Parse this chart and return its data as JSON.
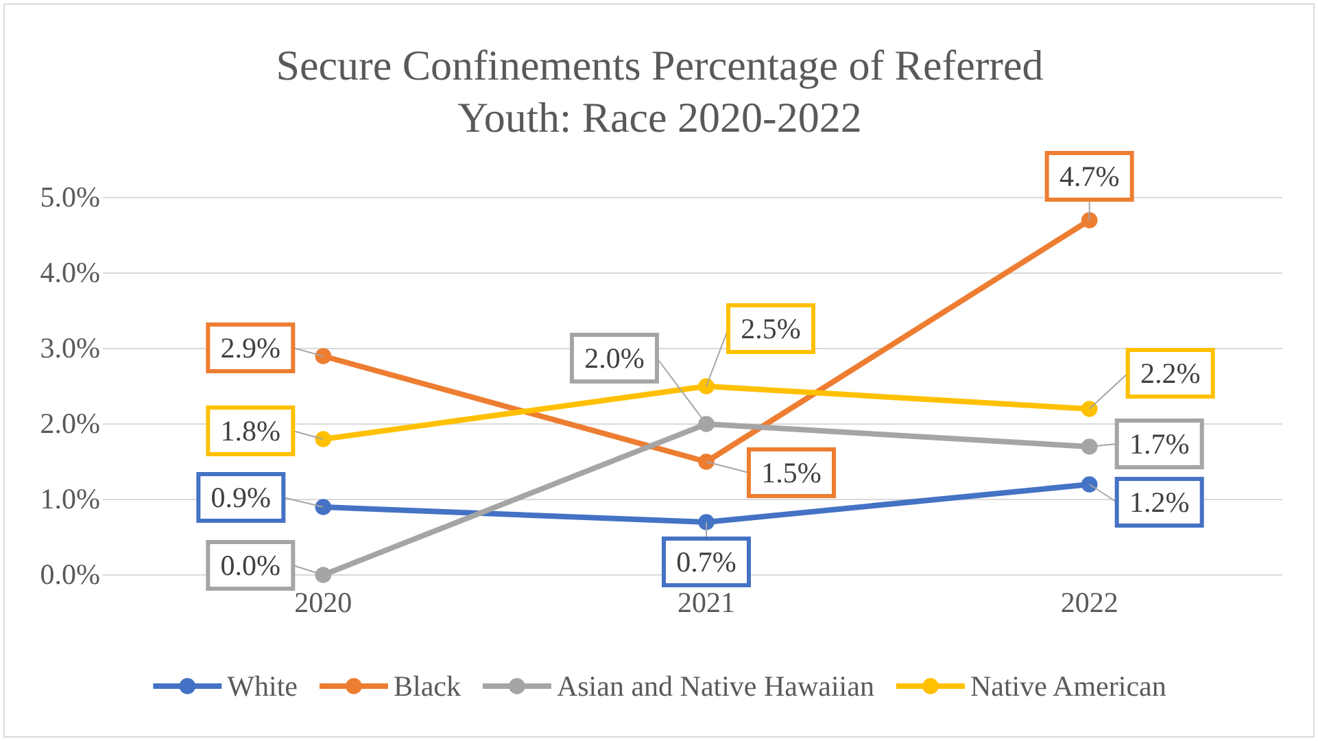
{
  "chart_data": {
    "type": "line",
    "title": "Secure Confinements Percentage of Referred Youth: Race 2020-2022",
    "categories": [
      "2020",
      "2021",
      "2022"
    ],
    "series": [
      {
        "name": "White",
        "color": "#4472c4",
        "values": [
          0.9,
          0.7,
          1.2
        ],
        "value_labels": [
          "0.9%",
          "0.7%",
          "1.2%"
        ]
      },
      {
        "name": "Black",
        "color": "#ed7d31",
        "values": [
          2.9,
          1.5,
          4.7
        ],
        "value_labels": [
          "2.9%",
          "1.5%",
          "4.7%"
        ]
      },
      {
        "name": "Asian and Native Hawaiian",
        "color": "#a5a5a5",
        "values": [
          0.0,
          2.0,
          1.7
        ],
        "value_labels": [
          "0.0%",
          "2.0%",
          "1.7%"
        ]
      },
      {
        "name": "Native American",
        "color": "#ffc000",
        "values": [
          1.8,
          2.5,
          2.2
        ],
        "value_labels": [
          "1.8%",
          "2.5%",
          "2.2%"
        ]
      }
    ],
    "ylim": [
      0,
      5
    ],
    "yticks": [
      {
        "value": 0,
        "label": "0.0%"
      },
      {
        "value": 1,
        "label": "1.0%"
      },
      {
        "value": 2,
        "label": "2.0%"
      },
      {
        "value": 3,
        "label": "3.0%"
      },
      {
        "value": 4,
        "label": "4.0%"
      },
      {
        "value": 5,
        "label": "5.0%"
      }
    ],
    "grid": "y",
    "legend": "bottom",
    "marker": "circle",
    "line_style": "solid"
  }
}
